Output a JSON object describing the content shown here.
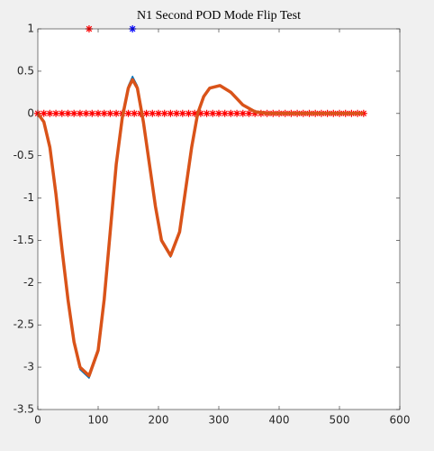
{
  "chart_data": {
    "type": "line",
    "title": "N1 Second POD Mode Flip Test",
    "xlim": [
      0,
      600
    ],
    "xticks": [
      0,
      100,
      200,
      300,
      400,
      500,
      600
    ],
    "ylim": [
      -3.5,
      1
    ],
    "yticks": [
      1,
      0.5,
      0,
      -0.5,
      -1,
      -1.5,
      -2,
      -2.5,
      -3,
      -3.5
    ],
    "grid": false,
    "series": [
      {
        "color": "#0072bd",
        "line": true,
        "marker": "none",
        "x": [
          0,
          10,
          20,
          30,
          40,
          50,
          60,
          70,
          85,
          100,
          110,
          120,
          130,
          140,
          150,
          157,
          165,
          175,
          185,
          195,
          205,
          220,
          235,
          245,
          255,
          265,
          275,
          285,
          302,
          320,
          340,
          360,
          380,
          400,
          450,
          500,
          540
        ],
        "values": [
          0,
          -0.1,
          -0.42,
          -0.97,
          -1.62,
          -2.23,
          -2.73,
          -3.03,
          -3.13,
          -2.83,
          -2.22,
          -1.42,
          -0.6,
          -0.03,
          0.33,
          0.44,
          0.33,
          -0.09,
          -0.6,
          -1.12,
          -1.52,
          -1.7,
          -1.42,
          -0.92,
          -0.41,
          0,
          0.2,
          0.3,
          0.33,
          0.25,
          0.1,
          0.02,
          0,
          0,
          0,
          0,
          0
        ]
      },
      {
        "color": "#ff0000",
        "line": false,
        "marker": "*",
        "x": [
          0,
          10,
          20,
          30,
          40,
          50,
          60,
          70,
          80,
          90,
          100,
          110,
          120,
          130,
          140,
          150,
          160,
          170,
          180,
          190,
          200,
          210,
          220,
          230,
          240,
          250,
          260,
          270,
          280,
          290,
          300,
          310,
          320,
          330,
          340,
          350,
          360,
          370,
          380,
          390,
          400,
          410,
          420,
          430,
          440,
          450,
          460,
          470,
          480,
          490,
          500,
          510,
          520,
          530,
          540
        ],
        "values": [
          0,
          0,
          0,
          0,
          0,
          0,
          0,
          0,
          0,
          0,
          0,
          0,
          0,
          0,
          0,
          0,
          0,
          0,
          0,
          0,
          0,
          0,
          0,
          0,
          0,
          0,
          0,
          0,
          0,
          0,
          0,
          0,
          0,
          0,
          0,
          0,
          0,
          0,
          0,
          0,
          0,
          0,
          0,
          0,
          0,
          0,
          0,
          0,
          0,
          0,
          0,
          0,
          0,
          0,
          0
        ]
      },
      {
        "color": "#d95319",
        "line": true,
        "marker": "none",
        "x": [
          0,
          10,
          20,
          30,
          40,
          50,
          60,
          70,
          85,
          100,
          110,
          120,
          130,
          140,
          150,
          157,
          165,
          175,
          185,
          195,
          205,
          220,
          235,
          245,
          255,
          265,
          275,
          285,
          302,
          320,
          340,
          360,
          380,
          400,
          450,
          500,
          540
        ],
        "values": [
          0,
          -0.1,
          -0.4,
          -0.95,
          -1.6,
          -2.2,
          -2.7,
          -3.0,
          -3.1,
          -2.8,
          -2.2,
          -1.4,
          -0.6,
          -0.05,
          0.3,
          0.4,
          0.3,
          -0.1,
          -0.6,
          -1.1,
          -1.5,
          -1.68,
          -1.4,
          -0.9,
          -0.4,
          0,
          0.2,
          0.3,
          0.33,
          0.25,
          0.1,
          0.02,
          0,
          0,
          0,
          0,
          0
        ]
      },
      {
        "color": "#ff0000",
        "line": false,
        "marker": "*",
        "x": [
          85
        ],
        "values": [
          1
        ]
      },
      {
        "color": "#0000ff",
        "line": false,
        "marker": "*",
        "x": [
          157
        ],
        "values": [
          1
        ]
      }
    ]
  }
}
